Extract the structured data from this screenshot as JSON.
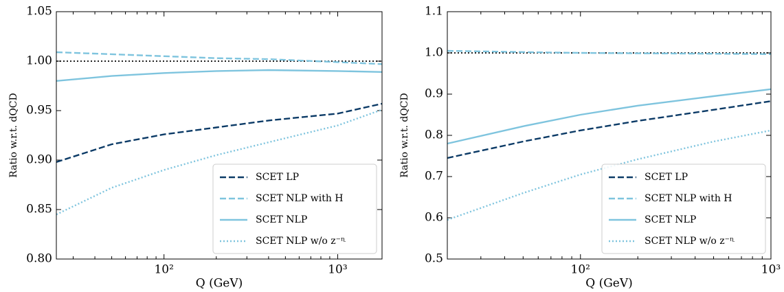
{
  "chart_data": [
    {
      "type": "line",
      "xlabel": "Q (GeV)",
      "ylabel": "Ratio w.r.t. dQCD",
      "xscale": "log",
      "xlim": [
        24,
        1800
      ],
      "ylim": [
        0.8,
        1.05
      ],
      "xticks": [
        {
          "value": 100,
          "label": "10²"
        },
        {
          "value": 1000,
          "label": "10³"
        }
      ],
      "yticks": [
        {
          "value": 0.8,
          "label": "0.80"
        },
        0.85,
        {
          "value": 0.9,
          "label": "0.90"
        },
        0.95,
        {
          "value": 1.0,
          "label": "1.00"
        },
        1.05
      ],
      "hline": 1.0,
      "legend": "lower right",
      "x": [
        24,
        50,
        100,
        200,
        400,
        1000,
        1800
      ],
      "series": [
        {
          "name": "SCET LP",
          "color": "#0b3a66",
          "dash": "dashed",
          "values": [
            0.898,
            0.916,
            0.926,
            0.933,
            0.94,
            0.947,
            0.957
          ]
        },
        {
          "name": "SCET NLP with H",
          "color": "#7ec4de",
          "dash": "dashed",
          "values": [
            1.009,
            1.007,
            1.005,
            1.003,
            1.002,
            0.999,
            0.997
          ]
        },
        {
          "name": "SCET NLP",
          "color": "#7ec4de",
          "dash": "solid",
          "values": [
            0.98,
            0.985,
            0.988,
            0.99,
            0.991,
            0.99,
            0.989
          ]
        },
        {
          "name": "SCET NLP w/o z⁻ᶯ",
          "color": "#7ec4de",
          "dash": "dotted",
          "values": [
            0.845,
            0.872,
            0.89,
            0.905,
            0.918,
            0.935,
            0.951
          ]
        }
      ]
    },
    {
      "type": "line",
      "xlabel": "Q (GeV)",
      "ylabel": "Ratio w.r.t. dQCD",
      "xscale": "log",
      "xlim": [
        20,
        1000
      ],
      "ylim": [
        0.5,
        1.1
      ],
      "xticks": [
        {
          "value": 100,
          "label": "10²"
        },
        {
          "value": 1000,
          "label": "10³"
        }
      ],
      "yticks": [
        0.5,
        0.6,
        0.7,
        0.8,
        0.9,
        {
          "value": 1.0,
          "label": "1.0"
        },
        1.1
      ],
      "hline": 1.0,
      "legend": "lower right",
      "x": [
        20,
        50,
        100,
        200,
        500,
        1000
      ],
      "series": [
        {
          "name": "SCET LP",
          "color": "#0b3a66",
          "dash": "dashed",
          "values": [
            0.745,
            0.785,
            0.812,
            0.835,
            0.862,
            0.883
          ]
        },
        {
          "name": "SCET NLP with H",
          "color": "#7ec4de",
          "dash": "dashed",
          "values": [
            1.005,
            1.002,
            1.0,
            0.999,
            0.998,
            0.997
          ]
        },
        {
          "name": "SCET NLP",
          "color": "#7ec4de",
          "dash": "solid",
          "values": [
            0.78,
            0.822,
            0.85,
            0.872,
            0.895,
            0.912
          ]
        },
        {
          "name": "SCET NLP w/o z⁻ᶯ",
          "color": "#7ec4de",
          "dash": "dotted",
          "values": [
            0.595,
            0.66,
            0.705,
            0.742,
            0.785,
            0.812
          ]
        }
      ]
    }
  ]
}
